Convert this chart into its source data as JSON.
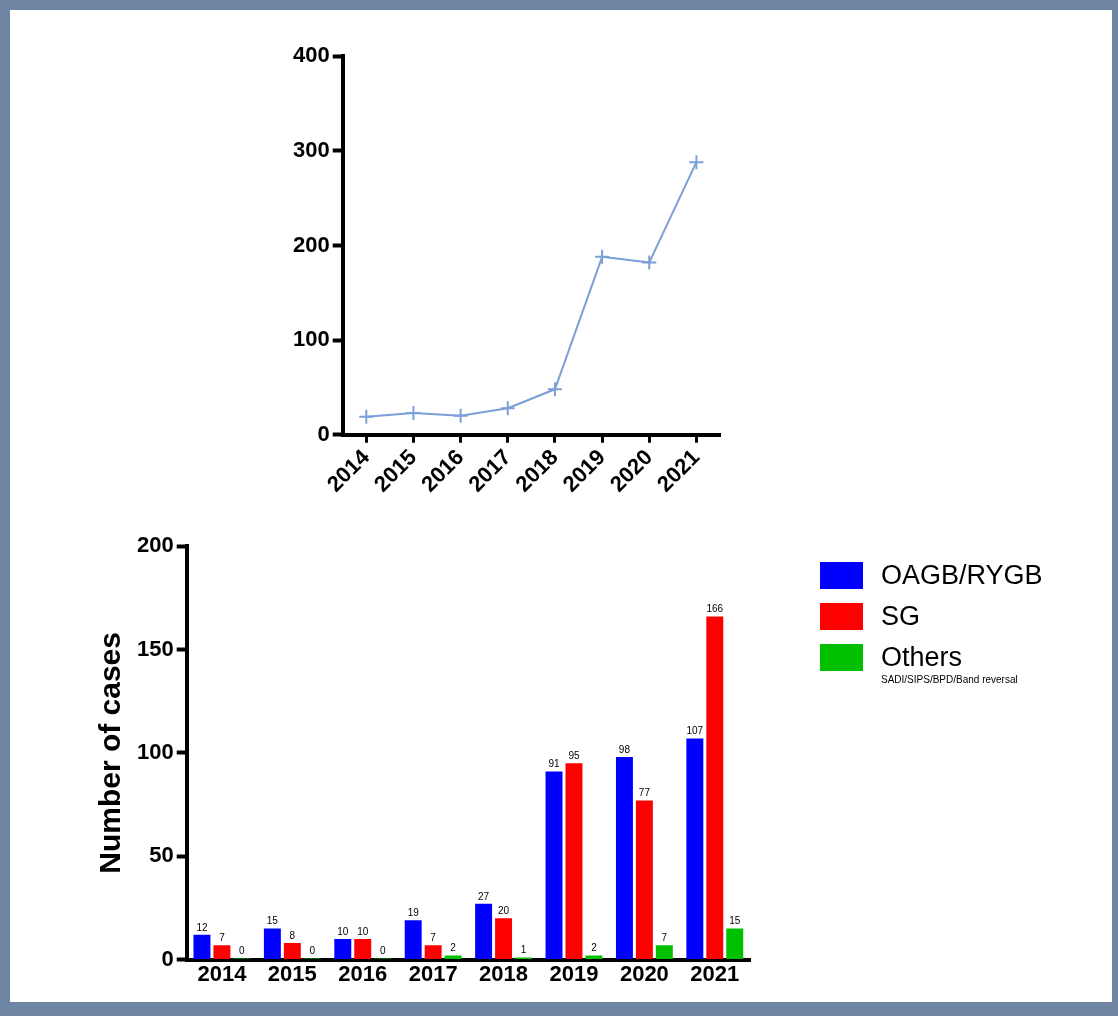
{
  "chart_data": [
    {
      "type": "line",
      "categories": [
        "2014",
        "2015",
        "2016",
        "2017",
        "2018",
        "2019",
        "2020",
        "2021"
      ],
      "values": [
        19,
        23,
        20,
        28,
        48,
        188,
        182,
        288
      ],
      "color": "#7b9fd6",
      "ylim": [
        0,
        400
      ],
      "yticks": [
        0,
        100,
        200,
        300,
        400
      ],
      "marker": "cross"
    },
    {
      "type": "bar",
      "ylabel": "Number of cases",
      "categories": [
        "2014",
        "2015",
        "2016",
        "2017",
        "2018",
        "2019",
        "2020",
        "2021"
      ],
      "series": [
        {
          "name": "OAGB/RYGB",
          "color": "#0000ff",
          "values": [
            12,
            15,
            10,
            19,
            27,
            91,
            98,
            107
          ]
        },
        {
          "name": "SG",
          "color": "#ff0000",
          "values": [
            7,
            8,
            10,
            7,
            20,
            95,
            77,
            166
          ]
        },
        {
          "name": "Others",
          "color": "#00c000",
          "values": [
            0,
            0,
            0,
            2,
            1,
            2,
            7,
            15
          ]
        }
      ],
      "ylim": [
        0,
        200
      ],
      "yticks": [
        0,
        50,
        100,
        150,
        200
      ],
      "data_labels": true,
      "legend": "right",
      "annotations": [
        "SADI/SIPS/BPD/Band reversal"
      ]
    }
  ]
}
